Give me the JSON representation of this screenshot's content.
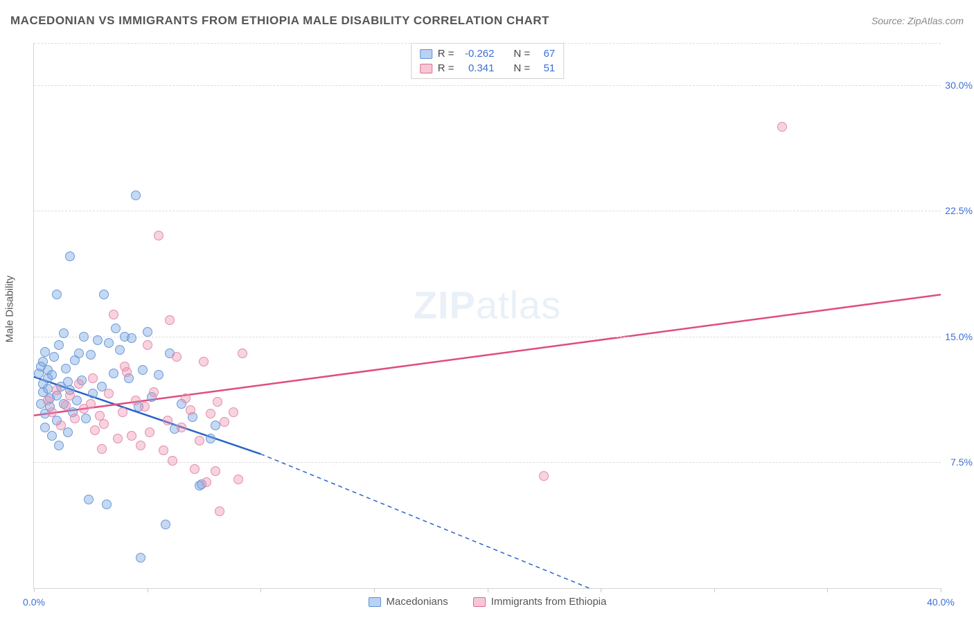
{
  "title": "MACEDONIAN VS IMMIGRANTS FROM ETHIOPIA MALE DISABILITY CORRELATION CHART",
  "source": "Source: ZipAtlas.com",
  "ylabel": "Male Disability",
  "watermark_a": "ZIP",
  "watermark_b": "atlas",
  "chart": {
    "type": "scatter",
    "xlim": [
      0,
      40
    ],
    "ylim": [
      0,
      32.5
    ],
    "x_ticks": [
      0,
      5,
      10,
      15,
      20,
      25,
      30,
      35,
      40
    ],
    "x_tick_labels": {
      "0": "0.0%",
      "40": "40.0%"
    },
    "y_gridlines": [
      7.5,
      15.0,
      22.5,
      30.0
    ],
    "y_tick_labels": [
      "7.5%",
      "15.0%",
      "22.5%",
      "30.0%"
    ],
    "background_color": "#ffffff",
    "grid_color": "#dcdcdc",
    "axis_color": "#d5d5d5",
    "tick_font_color": "#3b6fd6",
    "tick_fontsize": 14,
    "title_fontsize": 17,
    "marker_size": 14
  },
  "series": [
    {
      "name": "Macedonians",
      "swatch_fill": "#b9d1f2",
      "swatch_border": "#5e8fd8",
      "point_fill": "rgba(120,165,225,0.42)",
      "point_border": "#6a99d8",
      "line_color": "#2a63c7",
      "line_width": 2.5,
      "r_value": "-0.262",
      "n_value": "67",
      "regression": {
        "x1": 0,
        "y1": 12.6,
        "x2_solid": 10.0,
        "y2_solid": 8.0,
        "x2_dash": 24.5,
        "y2_dash": 0.0
      },
      "points": [
        [
          0.2,
          12.8
        ],
        [
          0.3,
          13.2
        ],
        [
          0.3,
          11.0
        ],
        [
          0.4,
          11.7
        ],
        [
          0.4,
          12.2
        ],
        [
          0.4,
          13.5
        ],
        [
          0.5,
          10.4
        ],
        [
          0.5,
          14.1
        ],
        [
          0.5,
          9.6
        ],
        [
          0.6,
          11.9
        ],
        [
          0.6,
          13.0
        ],
        [
          0.6,
          12.5
        ],
        [
          0.7,
          10.8
        ],
        [
          0.7,
          11.3
        ],
        [
          0.8,
          9.1
        ],
        [
          0.8,
          12.7
        ],
        [
          0.9,
          13.8
        ],
        [
          1.0,
          10.0
        ],
        [
          1.0,
          11.5
        ],
        [
          1.1,
          14.5
        ],
        [
          1.1,
          8.5
        ],
        [
          1.2,
          12.0
        ],
        [
          1.3,
          15.2
        ],
        [
          1.3,
          11.0
        ],
        [
          1.4,
          13.1
        ],
        [
          1.5,
          12.3
        ],
        [
          1.5,
          9.3
        ],
        [
          1.6,
          11.8
        ],
        [
          1.7,
          10.5
        ],
        [
          1.8,
          13.6
        ],
        [
          1.9,
          11.2
        ],
        [
          2.0,
          14.0
        ],
        [
          2.1,
          12.4
        ],
        [
          2.2,
          15.0
        ],
        [
          2.3,
          10.1
        ],
        [
          2.4,
          5.3
        ],
        [
          2.5,
          13.9
        ],
        [
          2.6,
          11.6
        ],
        [
          2.8,
          14.8
        ],
        [
          3.0,
          12.0
        ],
        [
          3.1,
          17.5
        ],
        [
          3.2,
          5.0
        ],
        [
          3.3,
          14.6
        ],
        [
          3.5,
          12.8
        ],
        [
          3.6,
          15.5
        ],
        [
          3.8,
          14.2
        ],
        [
          4.0,
          15.0
        ],
        [
          4.2,
          12.5
        ],
        [
          4.3,
          14.9
        ],
        [
          4.5,
          23.4
        ],
        [
          4.6,
          10.8
        ],
        [
          4.8,
          13.0
        ],
        [
          5.0,
          15.3
        ],
        [
          5.2,
          11.4
        ],
        [
          5.5,
          12.7
        ],
        [
          5.8,
          3.8
        ],
        [
          6.0,
          14.0
        ],
        [
          6.2,
          9.5
        ],
        [
          6.5,
          11.0
        ],
        [
          7.0,
          10.2
        ],
        [
          7.3,
          6.1
        ],
        [
          7.4,
          6.2
        ],
        [
          7.8,
          8.9
        ],
        [
          8.0,
          9.7
        ],
        [
          1.6,
          19.8
        ],
        [
          4.7,
          1.8
        ],
        [
          1.0,
          17.5
        ]
      ]
    },
    {
      "name": "Immigrants from Ethiopia",
      "swatch_fill": "#f6c8d5",
      "swatch_border": "#e06a8c",
      "point_fill": "rgba(235,140,170,0.38)",
      "point_border": "#e68aaa",
      "line_color": "#e14b83",
      "line_width": 2.5,
      "r_value": "0.341",
      "n_value": "51",
      "regression": {
        "x1": 0,
        "y1": 10.3,
        "x2_solid": 40,
        "y2_solid": 17.5,
        "x2_dash": 40,
        "y2_dash": 17.5
      },
      "points": [
        [
          0.6,
          11.2
        ],
        [
          0.8,
          10.5
        ],
        [
          1.0,
          11.8
        ],
        [
          1.2,
          9.7
        ],
        [
          1.4,
          10.9
        ],
        [
          1.6,
          11.5
        ],
        [
          1.8,
          10.1
        ],
        [
          2.0,
          12.2
        ],
        [
          2.2,
          10.7
        ],
        [
          2.5,
          11.0
        ],
        [
          2.7,
          9.4
        ],
        [
          2.9,
          10.3
        ],
        [
          3.1,
          9.8
        ],
        [
          3.3,
          11.6
        ],
        [
          3.5,
          16.3
        ],
        [
          3.7,
          8.9
        ],
        [
          3.9,
          10.5
        ],
        [
          4.1,
          12.9
        ],
        [
          4.3,
          9.1
        ],
        [
          4.5,
          11.2
        ],
        [
          4.7,
          8.5
        ],
        [
          4.9,
          10.8
        ],
        [
          5.1,
          9.3
        ],
        [
          5.3,
          11.7
        ],
        [
          5.5,
          21.0
        ],
        [
          5.7,
          8.2
        ],
        [
          5.9,
          10.0
        ],
        [
          6.1,
          7.6
        ],
        [
          6.3,
          13.8
        ],
        [
          6.5,
          9.6
        ],
        [
          6.7,
          11.3
        ],
        [
          6.9,
          10.6
        ],
        [
          7.1,
          7.1
        ],
        [
          7.3,
          8.8
        ],
        [
          7.5,
          13.5
        ],
        [
          7.8,
          10.4
        ],
        [
          8.0,
          7.0
        ],
        [
          8.1,
          11.1
        ],
        [
          8.2,
          4.6
        ],
        [
          8.4,
          9.9
        ],
        [
          8.8,
          10.5
        ],
        [
          9.0,
          6.5
        ],
        [
          9.2,
          14.0
        ],
        [
          6.0,
          16.0
        ],
        [
          4.0,
          13.2
        ],
        [
          3.0,
          8.3
        ],
        [
          2.6,
          12.5
        ],
        [
          5.0,
          14.5
        ],
        [
          22.5,
          6.7
        ],
        [
          33.0,
          27.5
        ],
        [
          7.6,
          6.3
        ]
      ]
    }
  ],
  "legend_top": {
    "r_label": "R =",
    "n_label": "N ="
  },
  "legend_bottom": [
    {
      "label": "Macedonians",
      "fill": "#b9d1f2",
      "border": "#5e8fd8"
    },
    {
      "label": "Immigrants from Ethiopia",
      "fill": "#f6c8d5",
      "border": "#e06a8c"
    }
  ]
}
